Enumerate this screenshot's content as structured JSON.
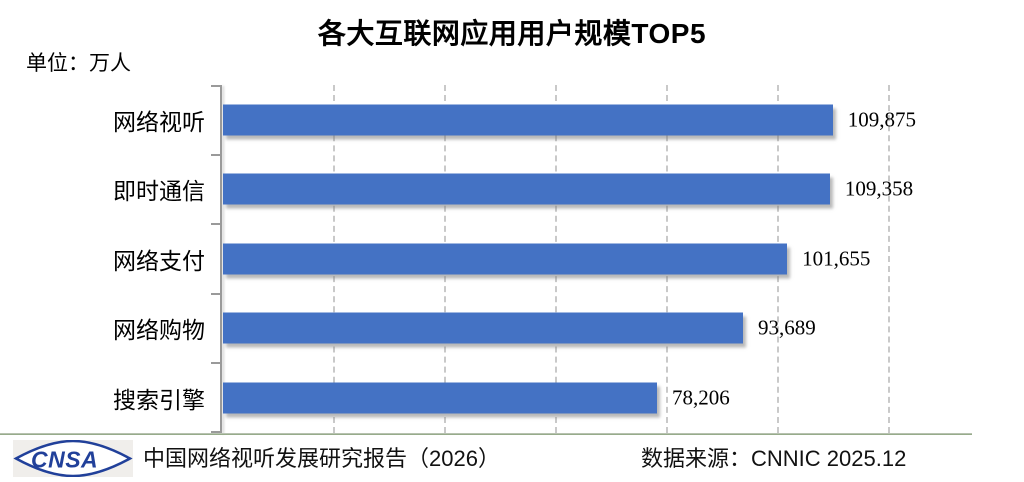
{
  "title": "各大互联网应用用户规模TOP5",
  "unit_label": "单位：万人",
  "chart_data": {
    "type": "bar",
    "orientation": "horizontal",
    "title": "各大互联网应用用户规模TOP5",
    "unit": "万人",
    "categories": [
      "网络视听",
      "即时通信",
      "网络支付",
      "网络购物",
      "搜索引擎"
    ],
    "values": [
      109875,
      109358,
      101655,
      93689,
      78206
    ],
    "value_labels": [
      "109,875",
      "109,358",
      "101,655",
      "93,689",
      "78,206"
    ],
    "xlim": [
      0,
      120000
    ],
    "gridline_interval": 20000,
    "grid": "dashed-vertical",
    "legend": "none",
    "bar_color": "#4472C4"
  },
  "footer": {
    "logo_text": "CNSA",
    "source_left": "中国网络视听发展研究报告（2026）",
    "source_right": "数据来源：CNNIC 2025.12"
  },
  "colors": {
    "bar": "#4472C4",
    "gridline": "#c9c9c9",
    "axis": "#9a9a9a",
    "separator": "#87a078",
    "logo_blue": "#21409a",
    "text": "#000000"
  }
}
